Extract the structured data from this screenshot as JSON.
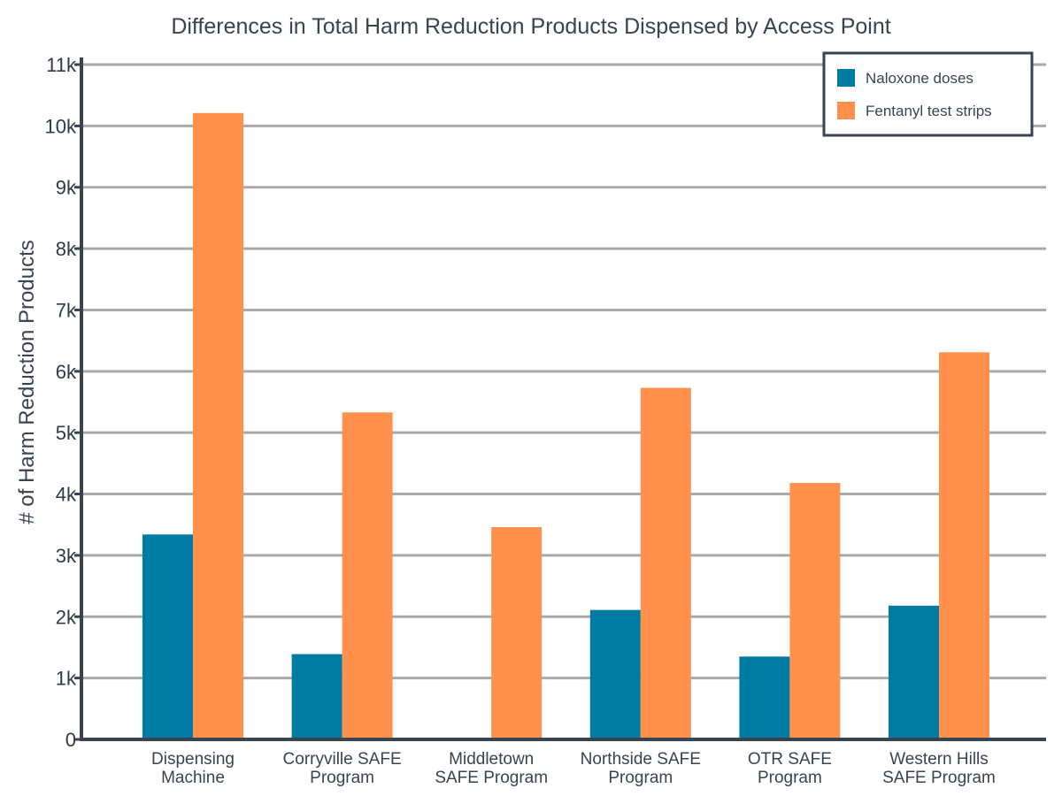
{
  "chart_data": {
    "type": "bar",
    "title": "Differences in Total Harm Reduction Products Dispensed by Access Point",
    "xlabel": "",
    "ylabel": "# of Harm Reduction Products",
    "categories": [
      [
        "Dispensing",
        "Machine"
      ],
      [
        "Corryville SAFE",
        "Program"
      ],
      [
        "Middletown",
        "SAFE Program"
      ],
      [
        "Northside SAFE",
        "Program"
      ],
      [
        "OTR SAFE",
        "Program"
      ],
      [
        "Western Hills",
        "SAFE Program"
      ]
    ],
    "series": [
      {
        "name": "Naloxone doses",
        "color": "#007ba3",
        "values": [
          3340,
          1390,
          0,
          2110,
          1350,
          2180
        ]
      },
      {
        "name": "Fentanyl test strips",
        "color": "#ff914d",
        "values": [
          10210,
          5330,
          3460,
          5730,
          4180,
          6310
        ]
      }
    ],
    "ylim": [
      0,
      11000
    ],
    "yticks": [
      0,
      1000,
      2000,
      3000,
      4000,
      5000,
      6000,
      7000,
      8000,
      9000,
      10000,
      11000
    ],
    "ytick_labels": [
      "0",
      "1k",
      "2k",
      "3k",
      "4k",
      "5k",
      "6k",
      "7k",
      "8k",
      "9k",
      "10k",
      "11k"
    ],
    "grid": true,
    "legend_position": "top-right"
  }
}
